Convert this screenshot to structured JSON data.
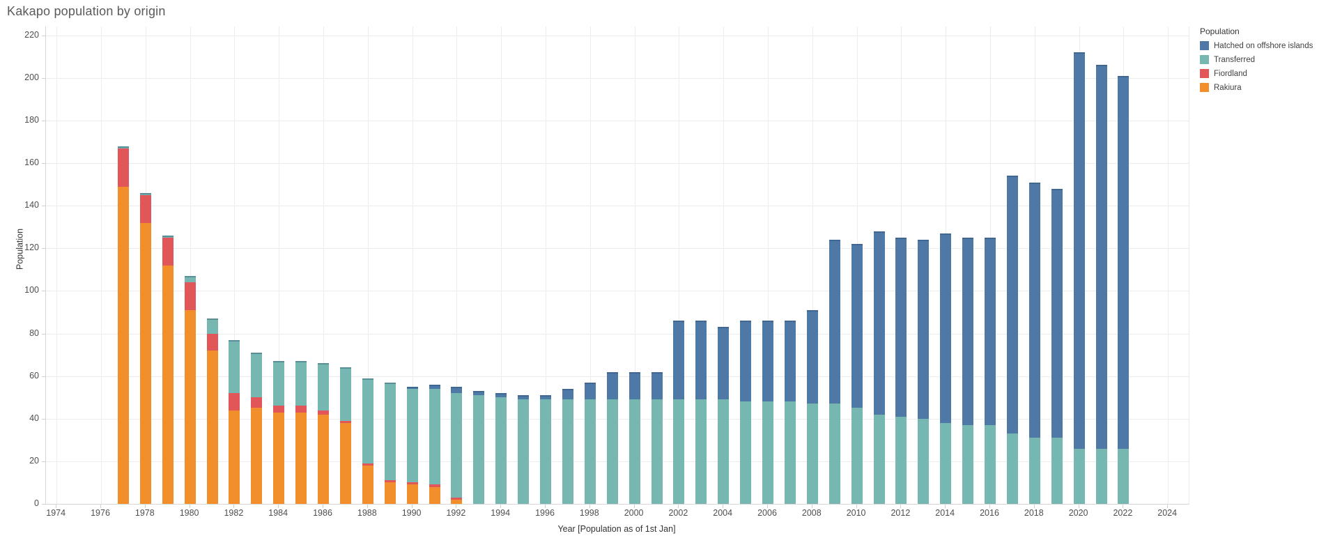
{
  "title": "Kakapo population by origin",
  "legend": {
    "title": "Population",
    "items": [
      {
        "label": "Hatched on offshore islands",
        "color": "#4e79a7"
      },
      {
        "label": "Transferred",
        "color": "#76b7b2"
      },
      {
        "label": "Fiordland",
        "color": "#e15759"
      },
      {
        "label": "Rakiura",
        "color": "#f28e2b"
      }
    ]
  },
  "axes": {
    "x_title": "Year [Population as of 1st Jan]",
    "y_title": "Population",
    "x_ticks": [
      1974,
      1976,
      1978,
      1980,
      1982,
      1984,
      1986,
      1988,
      1990,
      1992,
      1994,
      1996,
      1998,
      2000,
      2002,
      2004,
      2006,
      2008,
      2010,
      2012,
      2014,
      2016,
      2018,
      2020,
      2022,
      2024
    ],
    "y_ticks": [
      0,
      20,
      40,
      60,
      80,
      100,
      120,
      140,
      160,
      180,
      200,
      220
    ]
  },
  "chart_data": {
    "type": "bar",
    "stacked": true,
    "title": "Kakapo population by origin",
    "xlabel": "Year [Population as of 1st Jan]",
    "ylabel": "Population",
    "ylim": [
      0,
      220
    ],
    "xlim": [
      1973,
      2025
    ],
    "grid": true,
    "legend_position": "right",
    "x": [
      1977,
      1978,
      1979,
      1980,
      1981,
      1982,
      1983,
      1984,
      1985,
      1986,
      1987,
      1988,
      1989,
      1990,
      1991,
      1992,
      1993,
      1994,
      1995,
      1996,
      1997,
      1998,
      1999,
      2000,
      2001,
      2002,
      2003,
      2004,
      2005,
      2006,
      2007,
      2008,
      2009,
      2010,
      2011,
      2012,
      2013,
      2014,
      2015,
      2016,
      2017,
      2018,
      2019,
      2020,
      2021,
      2022
    ],
    "series": [
      {
        "name": "Rakiura",
        "color": "#f28e2b",
        "values": [
          149,
          132,
          112,
          91,
          72,
          44,
          45,
          43,
          43,
          42,
          38,
          18,
          10,
          9,
          8,
          2,
          0,
          0,
          0,
          0,
          0,
          0,
          0,
          0,
          0,
          0,
          0,
          0,
          0,
          0,
          0,
          0,
          0,
          0,
          0,
          0,
          0,
          0,
          0,
          0,
          0,
          0,
          0,
          0,
          0,
          0
        ]
      },
      {
        "name": "Fiordland",
        "color": "#e15759",
        "values": [
          18,
          13,
          13,
          13,
          8,
          8,
          5,
          3,
          3,
          2,
          1,
          1,
          1,
          1,
          1,
          1,
          0,
          0,
          0,
          0,
          0,
          0,
          0,
          0,
          0,
          0,
          0,
          0,
          0,
          0,
          0,
          0,
          0,
          0,
          0,
          0,
          0,
          0,
          0,
          0,
          0,
          0,
          0,
          0,
          0,
          0
        ]
      },
      {
        "name": "Transferred",
        "color": "#76b7b2",
        "values": [
          1,
          1,
          1,
          3,
          7,
          25,
          21,
          21,
          21,
          22,
          25,
          40,
          46,
          44,
          45,
          49,
          51,
          50,
          49,
          49,
          49,
          49,
          49,
          49,
          49,
          49,
          49,
          49,
          48,
          48,
          48,
          47,
          47,
          45,
          42,
          41,
          40,
          38,
          37,
          37,
          33,
          31,
          31,
          26,
          26,
          26
        ]
      },
      {
        "name": "Hatched on offshore islands",
        "color": "#4e79a7",
        "values": [
          0,
          0,
          0,
          0,
          0,
          0,
          0,
          0,
          0,
          0,
          0,
          0,
          0,
          1,
          2,
          3,
          2,
          2,
          2,
          2,
          5,
          8,
          13,
          13,
          13,
          37,
          37,
          34,
          38,
          38,
          38,
          44,
          77,
          77,
          86,
          84,
          84,
          89,
          88,
          88,
          121,
          120,
          117,
          186,
          180,
          175
        ]
      }
    ]
  }
}
